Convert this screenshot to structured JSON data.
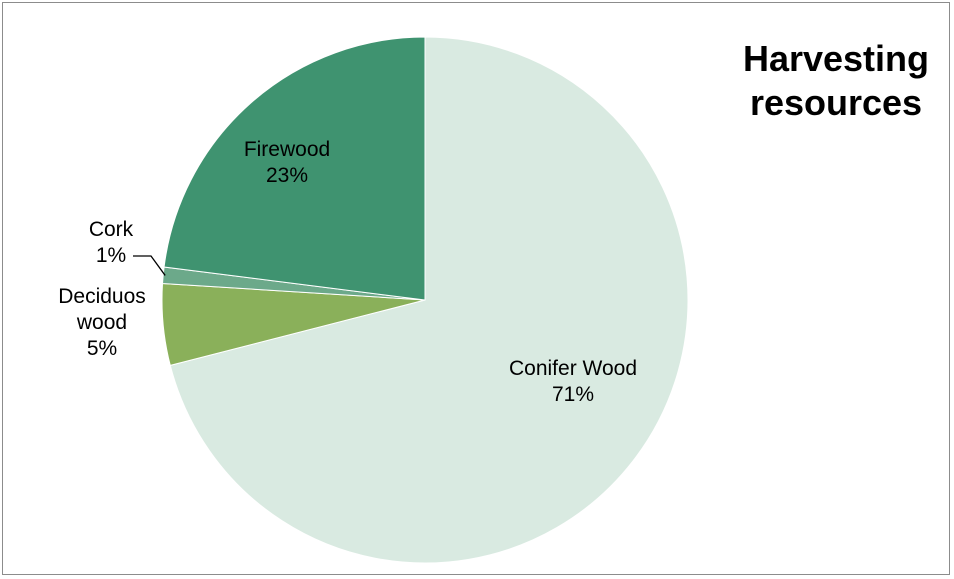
{
  "chart_data": {
    "type": "pie",
    "title_lines": [
      "Harvesting",
      "resources"
    ],
    "slices": [
      {
        "label": "Conifer Wood",
        "percent_label": "71%",
        "value": 71,
        "color": "#d9eae1"
      },
      {
        "label": "Deciduos wood",
        "percent_label": "5%",
        "value": 5,
        "color": "#8ab05a"
      },
      {
        "label": "Cork",
        "percent_label": "1%",
        "value": 1,
        "color": "#6ca98a"
      },
      {
        "label": "Firewood",
        "percent_label": "23%",
        "value": 23,
        "color": "#3f9370"
      }
    ]
  }
}
